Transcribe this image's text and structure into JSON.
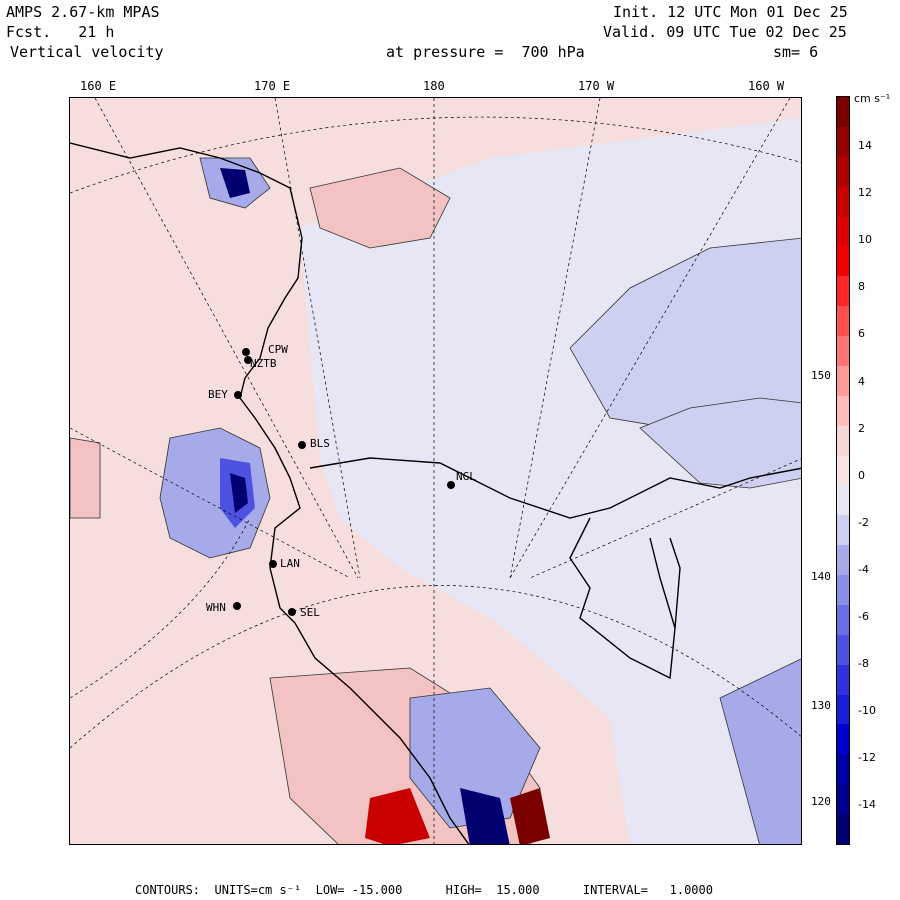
{
  "header": {
    "model": "AMPS 2.67-km MPAS",
    "forecast": "Fcst.   21 h",
    "field": "Vertical velocity",
    "init": "Init. 12 UTC Mon 01 Dec 25",
    "valid": "Valid. 09 UTC Tue 02 Dec 25",
    "pressure": "at pressure =  700 hPa",
    "smoothing": "sm= 6"
  },
  "lon_labels": [
    "160 E",
    "170 E",
    "180",
    "170 W",
    "160 W"
  ],
  "lat_labels": [
    "150 W",
    "140 W",
    "130 W",
    "120 W"
  ],
  "colorbar": {
    "units_label": "cm s⁻¹",
    "tick_labels": [
      "14",
      "12",
      "10",
      "8",
      "6",
      "4",
      "2",
      "0",
      "-2",
      "-4",
      "-6",
      "-8",
      "-10",
      "-12",
      "-14"
    ],
    "colors": [
      "#7a0000",
      "#960000",
      "#b00000",
      "#c80000",
      "#de0000",
      "#f00000",
      "#ff2828",
      "#ff5050",
      "#ff7474",
      "#ff9a9a",
      "#ffbcbc",
      "#f5d6d6",
      "#f6e4e2",
      "#e6e6f5",
      "#cdd0f0",
      "#a6aae8",
      "#8a8ee6",
      "#6a6ee2",
      "#4e52e0",
      "#2f32dc",
      "#1a1ed8",
      "#0000cc",
      "#0000aa",
      "#00008c",
      "#000070"
    ]
  },
  "stations": [
    "CPW",
    "NZTB",
    "BEY",
    "BLS",
    "NGL",
    "LAN",
    "WHN",
    "SEL"
  ],
  "footer": {
    "contours": "CONTOURS:  UNITS=cm s⁻¹  LOW= -15.000      HIGH=  15.000      INTERVAL=   1.0000"
  },
  "colors": {
    "positive_fill": "#f5d6d6",
    "negative_fill": "#cdd0f0",
    "strong_positive": "#c80000",
    "strong_negative": "#0000aa"
  }
}
